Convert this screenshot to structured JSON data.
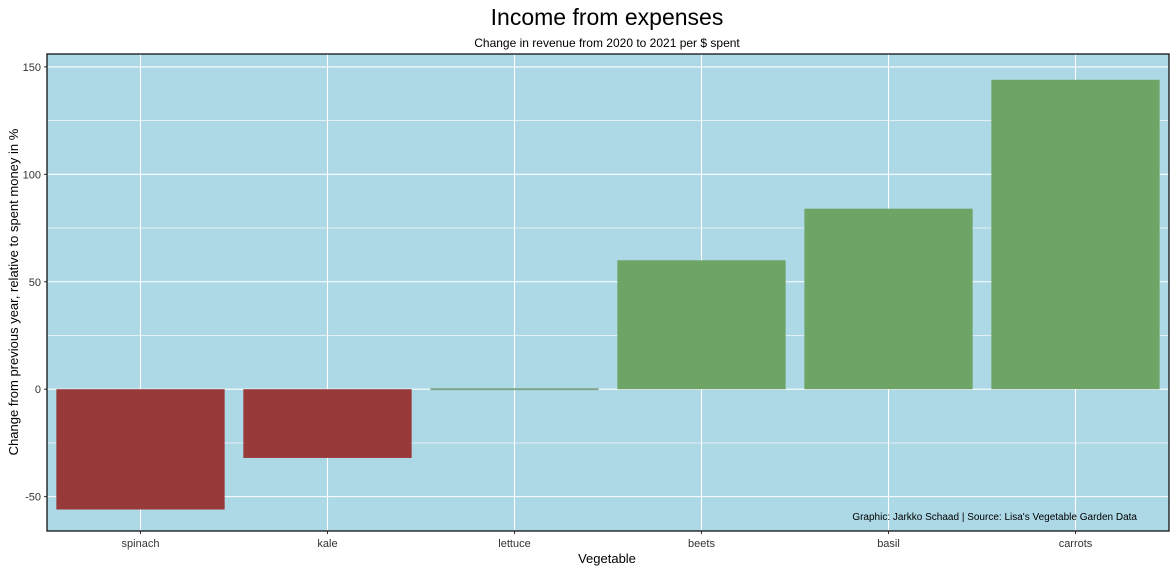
{
  "chart_data": {
    "type": "bar",
    "title": "Income from expenses",
    "subtitle": "Change in revenue from 2020 to 2021 per $ spent",
    "xlabel": "Vegetable",
    "ylabel": "Change from previous year, relative to spent money in %",
    "caption": "Graphic: Jarkko Schaad | Source: Lisa's Vegetable Garden Data",
    "categories": [
      "spinach",
      "kale",
      "lettuce",
      "beets",
      "basil",
      "carrots"
    ],
    "values": [
      -56,
      -32,
      0,
      60,
      84,
      144
    ],
    "ylim": [
      -66,
      156
    ],
    "yticks": [
      -50,
      0,
      50,
      100,
      150
    ],
    "grid": true,
    "colors": {
      "panel_background": "#add8e6",
      "grid": "#ffffff",
      "negative": "#983a3a",
      "positive": "#6ea567",
      "zero": "#7fa58a",
      "border": "#000000"
    }
  }
}
